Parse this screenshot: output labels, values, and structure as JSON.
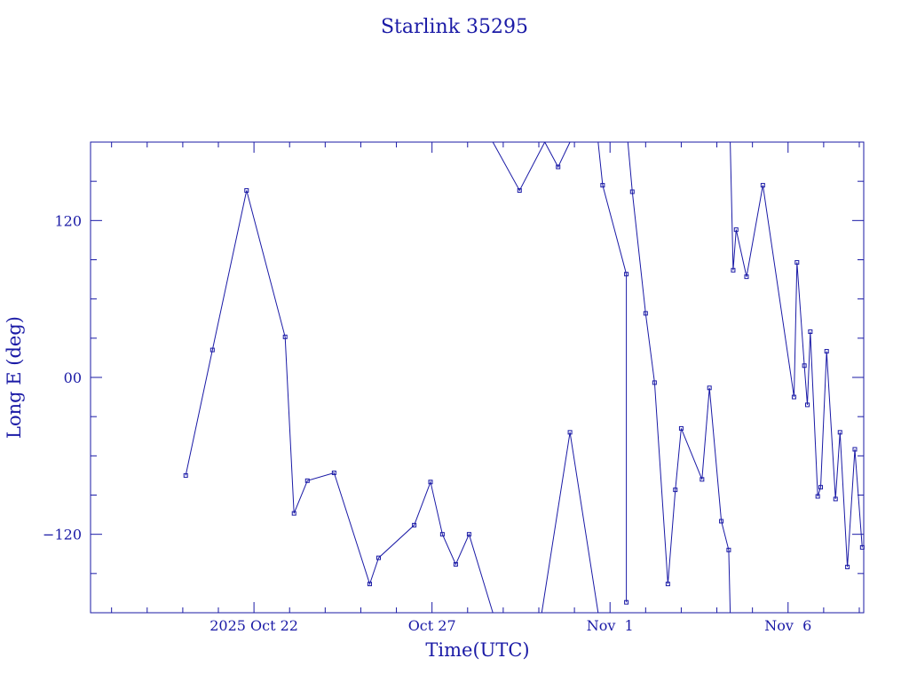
{
  "chart_data": {
    "type": "line",
    "title": "Starlink 35295",
    "xlabel": "Time(UTC)",
    "ylabel": "Long E (deg)",
    "color": "#1a1aa6",
    "x_ticks_major": [
      "2025-10-22",
      "2025-10-27",
      "2025-11-01",
      "2025-11-06"
    ],
    "x_tick_labels": [
      "2025 Oct 22",
      "Oct 27",
      "Nov  1",
      "Nov  6"
    ],
    "y_ticks_major": [
      -120,
      0,
      120
    ],
    "y_tick_labels": [
      "−120",
      "00",
      "120"
    ],
    "xlim": [
      "2025-10-17T09:50",
      "2025-11-08T03:00"
    ],
    "ylim": [
      -180,
      180
    ],
    "grid": false,
    "series": [
      {
        "segments": [
          [
            [
              "2025-10-20T02:00",
              -75
            ],
            [
              "2025-10-20T20:00",
              21
            ],
            [
              "2025-10-21T19:00",
              143
            ],
            [
              "2025-10-22T21:00",
              31
            ],
            [
              "2025-10-23T03:00",
              -104
            ],
            [
              "2025-10-23T12:00",
              -79
            ],
            [
              "2025-10-24T06:00",
              -73
            ],
            [
              "2025-10-25T06:00",
              -158
            ],
            [
              "2025-10-25T12:00",
              -138
            ],
            [
              "2025-10-26T12:00",
              -113
            ],
            [
              "2025-10-26T23:00",
              -80
            ],
            [
              "2025-10-27T07:00",
              -120
            ],
            [
              "2025-10-27T16:00",
              -143
            ],
            [
              "2025-10-28T01:00",
              -120
            ],
            [
              "2025-10-28T17:00",
              -180
            ]
          ],
          [
            [
              "2025-10-28T17:00",
              180
            ],
            [
              "2025-10-29T11:00",
              143
            ],
            [
              "2025-10-30T04:00",
              180
            ]
          ],
          [
            [
              "2025-10-30T04:00",
              180
            ],
            [
              "2025-10-30T13:00",
              161
            ],
            [
              "2025-10-30T21:00",
              180
            ]
          ],
          [
            [
              "2025-10-30T02:00",
              -180
            ],
            [
              "2025-10-30T21:00",
              -42
            ],
            [
              "2025-10-31T16:00",
              -180
            ]
          ],
          [
            [
              "2025-10-31T16:00",
              180
            ],
            [
              "2025-10-31T19:00",
              147
            ],
            [
              "2025-11-01T11:00",
              79
            ],
            [
              "2025-11-01T11:00",
              -172
            ]
          ],
          [
            [
              "2025-11-01T12:00",
              180
            ],
            [
              "2025-11-01T15:00",
              142
            ],
            [
              "2025-11-01T24:00",
              49
            ],
            [
              "2025-11-02T06:00",
              -4
            ],
            [
              "2025-11-02T15:00",
              -158
            ],
            [
              "2025-11-02T20:00",
              -86
            ],
            [
              "2025-11-03T00:00",
              -39
            ],
            [
              "2025-11-03T14:00",
              -78
            ],
            [
              "2025-11-03T19:00",
              -8
            ],
            [
              "2025-11-04T03:00",
              -110
            ],
            [
              "2025-11-04T08:00",
              -132
            ],
            [
              "2025-11-04T09:00",
              -180
            ]
          ],
          [
            [
              "2025-11-04T09:00",
              180
            ],
            [
              "2025-11-04T11:00",
              82
            ],
            [
              "2025-11-04T13:00",
              113
            ],
            [
              "2025-11-04T20:00",
              77
            ],
            [
              "2025-11-05T07:00",
              147
            ],
            [
              "2025-11-06T04:00",
              -15
            ],
            [
              "2025-11-06T06:00",
              88
            ],
            [
              "2025-11-06T11:00",
              9
            ],
            [
              "2025-11-06T13:00",
              -21
            ],
            [
              "2025-11-06T15:00",
              35
            ],
            [
              "2025-11-06T20:00",
              -91
            ],
            [
              "2025-11-06T22:00",
              -84
            ],
            [
              "2025-11-07T02:00",
              20
            ],
            [
              "2025-11-07T08:00",
              -93
            ],
            [
              "2025-11-07T11:00",
              -42
            ],
            [
              "2025-11-07T16:00",
              -145
            ],
            [
              "2025-11-07T21:00",
              -55
            ],
            [
              "2025-11-08T02:00",
              -130
            ]
          ]
        ]
      }
    ]
  }
}
